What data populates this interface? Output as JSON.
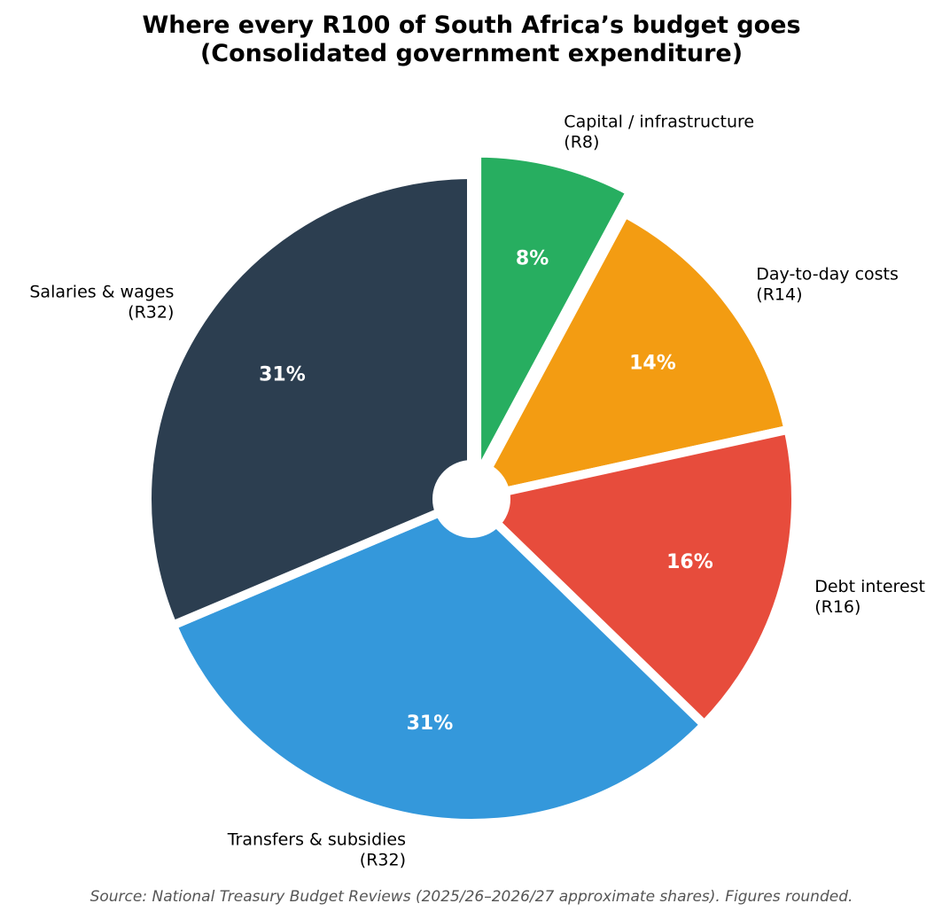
{
  "chart_data": {
    "type": "pie",
    "title": [
      "Where every R100 of South Africa’s budget goes",
      "(Consolidated government expenditure)"
    ],
    "slices": [
      {
        "label": "Capital / infrastructure",
        "amount": "(R8)",
        "value": 8,
        "percent": "8%",
        "color": "#27ae60",
        "exploded": true
      },
      {
        "label": "Day-to-day costs",
        "amount": "(R14)",
        "value": 14,
        "percent": "14%",
        "color": "#f39c12",
        "exploded": false
      },
      {
        "label": "Debt interest",
        "amount": "(R16)",
        "value": 16,
        "percent": "16%",
        "color": "#e74c3c",
        "exploded": false
      },
      {
        "label": "Transfers & subsidies",
        "amount": "(R32)",
        "value": 32,
        "percent": "31%",
        "color": "#3498db",
        "exploded": false
      },
      {
        "label": "Salaries & wages",
        "amount": "(R32)",
        "value": 32,
        "percent": "31%",
        "color": "#2c3e50",
        "exploded": false
      }
    ],
    "start": "top",
    "direction": "clockwise",
    "center_hole": true,
    "legend": "none",
    "source": "Source: National Treasury Budget Reviews (2025/26–2026/27 approximate shares). Figures rounded."
  }
}
